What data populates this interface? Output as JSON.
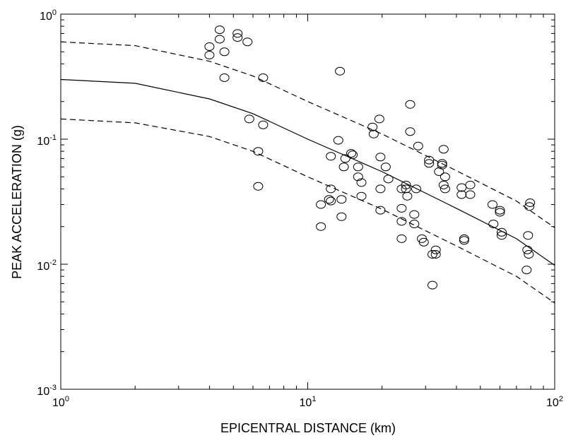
{
  "chart_data": {
    "type": "scatter",
    "xlabel": "EPICENTRAL DISTANCE (km)",
    "ylabel": "PEAK ACCELERATION (g)",
    "xscale": "log",
    "yscale": "log",
    "xlim": [
      1,
      100
    ],
    "ylim": [
      0.001,
      1
    ],
    "grid": false,
    "legend": "none",
    "xticks": [
      {
        "base": "10",
        "exp": "0",
        "value": 1
      },
      {
        "base": "10",
        "exp": "1",
        "value": 10
      },
      {
        "base": "10",
        "exp": "2",
        "value": 100
      }
    ],
    "yticks": [
      {
        "base": "10",
        "exp": "-3",
        "value": 0.001
      },
      {
        "base": "10",
        "exp": "-2",
        "value": 0.01
      },
      {
        "base": "10",
        "exp": "-1",
        "value": 0.1
      },
      {
        "base": "10",
        "exp": "0",
        "value": 1
      }
    ],
    "series": [
      {
        "style": "markers-open-circle",
        "color": "#000000",
        "points": [
          [
            4.0,
            0.55
          ],
          [
            4.0,
            0.47
          ],
          [
            4.4,
            0.75
          ],
          [
            4.4,
            0.63
          ],
          [
            4.6,
            0.5
          ],
          [
            4.6,
            0.31
          ],
          [
            5.2,
            0.7
          ],
          [
            5.2,
            0.65
          ],
          [
            5.7,
            0.6
          ],
          [
            5.8,
            0.145
          ],
          [
            6.3,
            0.08
          ],
          [
            6.3,
            0.042
          ],
          [
            6.6,
            0.31
          ],
          [
            6.6,
            0.13
          ],
          [
            11.3,
            0.03
          ],
          [
            11.3,
            0.02
          ],
          [
            12.2,
            0.033
          ],
          [
            12.4,
            0.073
          ],
          [
            12.4,
            0.04
          ],
          [
            12.4,
            0.032
          ],
          [
            13.3,
            0.098
          ],
          [
            13.5,
            0.35
          ],
          [
            13.7,
            0.033
          ],
          [
            13.7,
            0.024
          ],
          [
            14.0,
            0.06
          ],
          [
            14.2,
            0.07
          ],
          [
            15.0,
            0.077
          ],
          [
            15.2,
            0.075
          ],
          [
            16.0,
            0.06
          ],
          [
            16.0,
            0.05
          ],
          [
            16.5,
            0.045
          ],
          [
            16.5,
            0.035
          ],
          [
            18.3,
            0.125
          ],
          [
            18.5,
            0.11
          ],
          [
            19.5,
            0.145
          ],
          [
            19.7,
            0.072
          ],
          [
            19.7,
            0.04
          ],
          [
            19.7,
            0.027
          ],
          [
            20.7,
            0.06
          ],
          [
            21.2,
            0.048
          ],
          [
            24.0,
            0.04
          ],
          [
            24.0,
            0.028
          ],
          [
            24.0,
            0.022
          ],
          [
            24.0,
            0.016
          ],
          [
            25.0,
            0.043
          ],
          [
            25.0,
            0.04
          ],
          [
            25.3,
            0.035
          ],
          [
            26.0,
            0.19
          ],
          [
            26.0,
            0.115
          ],
          [
            27.0,
            0.025
          ],
          [
            27.0,
            0.021
          ],
          [
            27.5,
            0.04
          ],
          [
            28.0,
            0.088
          ],
          [
            29.0,
            0.016
          ],
          [
            29.5,
            0.015
          ],
          [
            31.0,
            0.068
          ],
          [
            31.0,
            0.064
          ],
          [
            32.0,
            0.012
          ],
          [
            32.0,
            0.0068
          ],
          [
            33.0,
            0.013
          ],
          [
            33.0,
            0.012
          ],
          [
            34.0,
            0.055
          ],
          [
            35.0,
            0.064
          ],
          [
            35.0,
            0.062
          ],
          [
            35.5,
            0.083
          ],
          [
            35.5,
            0.043
          ],
          [
            36.0,
            0.05
          ],
          [
            36.0,
            0.04
          ],
          [
            42.0,
            0.041
          ],
          [
            42.0,
            0.036
          ],
          [
            43.0,
            0.016
          ],
          [
            43.0,
            0.0155
          ],
          [
            45.5,
            0.043
          ],
          [
            45.5,
            0.036
          ],
          [
            56.0,
            0.03
          ],
          [
            56.5,
            0.021
          ],
          [
            60.0,
            0.027
          ],
          [
            60.0,
            0.026
          ],
          [
            61.0,
            0.018
          ],
          [
            61.0,
            0.017
          ],
          [
            77.0,
            0.009
          ],
          [
            77.5,
            0.013
          ],
          [
            78.0,
            0.017
          ],
          [
            78.5,
            0.012
          ],
          [
            79.0,
            0.029
          ],
          [
            79.5,
            0.031
          ]
        ]
      },
      {
        "style": "solid-line",
        "color": "#000000",
        "points": [
          [
            1,
            0.3
          ],
          [
            2,
            0.28
          ],
          [
            4,
            0.21
          ],
          [
            6,
            0.16
          ],
          [
            10,
            0.1
          ],
          [
            20,
            0.055
          ],
          [
            40,
            0.028
          ],
          [
            70,
            0.016
          ],
          [
            100,
            0.0098
          ]
        ]
      },
      {
        "style": "dashed-line",
        "color": "#000000",
        "points": [
          [
            1,
            0.6
          ],
          [
            2,
            0.56
          ],
          [
            4,
            0.42
          ],
          [
            6,
            0.32
          ],
          [
            10,
            0.2
          ],
          [
            20,
            0.11
          ],
          [
            40,
            0.056
          ],
          [
            70,
            0.032
          ],
          [
            100,
            0.0196
          ]
        ]
      },
      {
        "style": "dashed-line",
        "color": "#000000",
        "points": [
          [
            1,
            0.145
          ],
          [
            2,
            0.135
          ],
          [
            4,
            0.105
          ],
          [
            6,
            0.08
          ],
          [
            10,
            0.05
          ],
          [
            20,
            0.0275
          ],
          [
            40,
            0.014
          ],
          [
            70,
            0.008
          ],
          [
            100,
            0.0049
          ]
        ]
      }
    ]
  }
}
